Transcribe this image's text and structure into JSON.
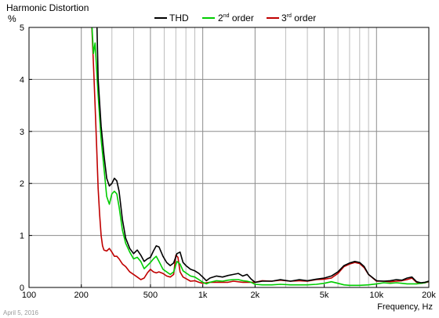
{
  "chart_data": {
    "type": "line",
    "title": "Harmonic Distortion",
    "ylabel": "%",
    "xlabel": "Frequency, Hz",
    "x_scale": "log",
    "xlim": [
      100,
      20000
    ],
    "ylim": [
      0,
      5
    ],
    "grid": true,
    "legend_position": "top",
    "date_label": "April 5, 2016",
    "yticks": [
      {
        "value": 0,
        "label": "0"
      },
      {
        "value": 1,
        "label": "1"
      },
      {
        "value": 2,
        "label": "2"
      },
      {
        "value": 3,
        "label": "3"
      },
      {
        "value": 4,
        "label": "4"
      },
      {
        "value": 5,
        "label": "5"
      }
    ],
    "xticks": [
      {
        "value": 100,
        "label": "100"
      },
      {
        "value": 200,
        "label": "200"
      },
      {
        "value": 500,
        "label": "500"
      },
      {
        "value": 1000,
        "label": "1k"
      },
      {
        "value": 2000,
        "label": "2k"
      },
      {
        "value": 5000,
        "label": "5k"
      },
      {
        "value": 10000,
        "label": "10k"
      },
      {
        "value": 20000,
        "label": "20k"
      }
    ],
    "series": [
      {
        "name": "THD",
        "color": "#000000",
        "points": [
          [
            235,
            5.3
          ],
          [
            245,
            5.3
          ],
          [
            250,
            4.0
          ],
          [
            260,
            3.1
          ],
          [
            270,
            2.55
          ],
          [
            280,
            2.1
          ],
          [
            290,
            1.95
          ],
          [
            300,
            2.0
          ],
          [
            310,
            2.1
          ],
          [
            320,
            2.05
          ],
          [
            330,
            1.85
          ],
          [
            345,
            1.3
          ],
          [
            360,
            0.95
          ],
          [
            380,
            0.75
          ],
          [
            400,
            0.65
          ],
          [
            420,
            0.72
          ],
          [
            440,
            0.62
          ],
          [
            460,
            0.5
          ],
          [
            480,
            0.55
          ],
          [
            500,
            0.58
          ],
          [
            520,
            0.7
          ],
          [
            540,
            0.8
          ],
          [
            560,
            0.78
          ],
          [
            590,
            0.6
          ],
          [
            620,
            0.48
          ],
          [
            650,
            0.42
          ],
          [
            680,
            0.47
          ],
          [
            710,
            0.65
          ],
          [
            740,
            0.68
          ],
          [
            770,
            0.48
          ],
          [
            800,
            0.42
          ],
          [
            850,
            0.35
          ],
          [
            900,
            0.32
          ],
          [
            950,
            0.27
          ],
          [
            1000,
            0.2
          ],
          [
            1050,
            0.13
          ],
          [
            1100,
            0.18
          ],
          [
            1200,
            0.22
          ],
          [
            1300,
            0.2
          ],
          [
            1400,
            0.23
          ],
          [
            1500,
            0.25
          ],
          [
            1600,
            0.27
          ],
          [
            1700,
            0.22
          ],
          [
            1800,
            0.25
          ],
          [
            1900,
            0.16
          ],
          [
            2000,
            0.1
          ],
          [
            2200,
            0.12
          ],
          [
            2500,
            0.12
          ],
          [
            2800,
            0.15
          ],
          [
            3200,
            0.12
          ],
          [
            3600,
            0.15
          ],
          [
            4000,
            0.13
          ],
          [
            4500,
            0.16
          ],
          [
            5000,
            0.18
          ],
          [
            5500,
            0.22
          ],
          [
            6000,
            0.3
          ],
          [
            6500,
            0.42
          ],
          [
            7000,
            0.47
          ],
          [
            7500,
            0.5
          ],
          [
            8000,
            0.48
          ],
          [
            8500,
            0.4
          ],
          [
            9000,
            0.25
          ],
          [
            10000,
            0.13
          ],
          [
            11000,
            0.12
          ],
          [
            12000,
            0.13
          ],
          [
            13000,
            0.15
          ],
          [
            14000,
            0.14
          ],
          [
            15000,
            0.18
          ],
          [
            16000,
            0.2
          ],
          [
            17000,
            0.11
          ],
          [
            18000,
            0.09
          ],
          [
            19000,
            0.1
          ],
          [
            20000,
            0.12
          ]
        ]
      },
      {
        "name": "2nd order",
        "color": "#00cc00",
        "points": [
          [
            228,
            5.3
          ],
          [
            235,
            4.5
          ],
          [
            240,
            4.7
          ],
          [
            250,
            3.7
          ],
          [
            260,
            2.85
          ],
          [
            270,
            2.3
          ],
          [
            280,
            1.75
          ],
          [
            290,
            1.6
          ],
          [
            300,
            1.8
          ],
          [
            310,
            1.85
          ],
          [
            320,
            1.8
          ],
          [
            330,
            1.55
          ],
          [
            345,
            1.1
          ],
          [
            360,
            0.85
          ],
          [
            380,
            0.68
          ],
          [
            400,
            0.55
          ],
          [
            420,
            0.58
          ],
          [
            440,
            0.5
          ],
          [
            460,
            0.36
          ],
          [
            480,
            0.42
          ],
          [
            500,
            0.48
          ],
          [
            520,
            0.55
          ],
          [
            540,
            0.6
          ],
          [
            560,
            0.5
          ],
          [
            590,
            0.35
          ],
          [
            620,
            0.3
          ],
          [
            650,
            0.25
          ],
          [
            680,
            0.3
          ],
          [
            710,
            0.5
          ],
          [
            740,
            0.45
          ],
          [
            770,
            0.32
          ],
          [
            800,
            0.28
          ],
          [
            850,
            0.22
          ],
          [
            900,
            0.2
          ],
          [
            950,
            0.15
          ],
          [
            1000,
            0.1
          ],
          [
            1050,
            0.07
          ],
          [
            1100,
            0.1
          ],
          [
            1200,
            0.13
          ],
          [
            1300,
            0.12
          ],
          [
            1400,
            0.14
          ],
          [
            1500,
            0.15
          ],
          [
            1600,
            0.15
          ],
          [
            1700,
            0.13
          ],
          [
            1800,
            0.12
          ],
          [
            1900,
            0.1
          ],
          [
            2000,
            0.06
          ],
          [
            2200,
            0.05
          ],
          [
            2500,
            0.05
          ],
          [
            2800,
            0.06
          ],
          [
            3200,
            0.05
          ],
          [
            3600,
            0.05
          ],
          [
            4000,
            0.05
          ],
          [
            4500,
            0.06
          ],
          [
            5000,
            0.08
          ],
          [
            5500,
            0.11
          ],
          [
            6000,
            0.08
          ],
          [
            6500,
            0.05
          ],
          [
            7000,
            0.04
          ],
          [
            8000,
            0.04
          ],
          [
            9000,
            0.05
          ],
          [
            10000,
            0.07
          ],
          [
            11000,
            0.09
          ],
          [
            12000,
            0.08
          ],
          [
            13000,
            0.09
          ],
          [
            14000,
            0.08
          ],
          [
            15000,
            0.07
          ],
          [
            16000,
            0.07
          ],
          [
            17000,
            0.07
          ],
          [
            18000,
            0.08
          ],
          [
            19000,
            0.09
          ],
          [
            20000,
            0.12
          ]
        ]
      },
      {
        "name": "3rd order",
        "color": "#c00000",
        "points": [
          [
            228,
            5.3
          ],
          [
            235,
            4.3
          ],
          [
            240,
            3.5
          ],
          [
            245,
            2.7
          ],
          [
            250,
            1.9
          ],
          [
            255,
            1.4
          ],
          [
            260,
            1.0
          ],
          [
            265,
            0.8
          ],
          [
            270,
            0.72
          ],
          [
            280,
            0.7
          ],
          [
            290,
            0.75
          ],
          [
            300,
            0.68
          ],
          [
            310,
            0.6
          ],
          [
            320,
            0.6
          ],
          [
            330,
            0.55
          ],
          [
            345,
            0.45
          ],
          [
            360,
            0.4
          ],
          [
            380,
            0.3
          ],
          [
            400,
            0.25
          ],
          [
            420,
            0.2
          ],
          [
            440,
            0.15
          ],
          [
            460,
            0.18
          ],
          [
            480,
            0.28
          ],
          [
            500,
            0.35
          ],
          [
            520,
            0.3
          ],
          [
            540,
            0.28
          ],
          [
            560,
            0.3
          ],
          [
            590,
            0.27
          ],
          [
            620,
            0.22
          ],
          [
            650,
            0.2
          ],
          [
            680,
            0.25
          ],
          [
            700,
            0.62
          ],
          [
            720,
            0.58
          ],
          [
            740,
            0.3
          ],
          [
            770,
            0.2
          ],
          [
            800,
            0.17
          ],
          [
            850,
            0.12
          ],
          [
            900,
            0.13
          ],
          [
            950,
            0.1
          ],
          [
            1000,
            0.08
          ],
          [
            1100,
            0.1
          ],
          [
            1200,
            0.1
          ],
          [
            1300,
            0.1
          ],
          [
            1400,
            0.1
          ],
          [
            1500,
            0.12
          ],
          [
            1700,
            0.1
          ],
          [
            2000,
            0.1
          ],
          [
            2200,
            0.13
          ],
          [
            2500,
            0.12
          ],
          [
            2800,
            0.14
          ],
          [
            3200,
            0.12
          ],
          [
            3600,
            0.13
          ],
          [
            4000,
            0.12
          ],
          [
            4500,
            0.15
          ],
          [
            5000,
            0.16
          ],
          [
            5500,
            0.18
          ],
          [
            6000,
            0.27
          ],
          [
            6500,
            0.4
          ],
          [
            7000,
            0.45
          ],
          [
            7500,
            0.48
          ],
          [
            8000,
            0.46
          ],
          [
            8500,
            0.38
          ],
          [
            9000,
            0.25
          ],
          [
            10000,
            0.12
          ],
          [
            11000,
            0.12
          ],
          [
            12000,
            0.11
          ],
          [
            13000,
            0.12
          ],
          [
            14000,
            0.13
          ],
          [
            15000,
            0.15
          ],
          [
            16000,
            0.18
          ],
          [
            17000,
            0.1
          ],
          [
            18000,
            0.08
          ],
          [
            19000,
            0.09
          ],
          [
            20000,
            0.11
          ]
        ]
      }
    ]
  }
}
